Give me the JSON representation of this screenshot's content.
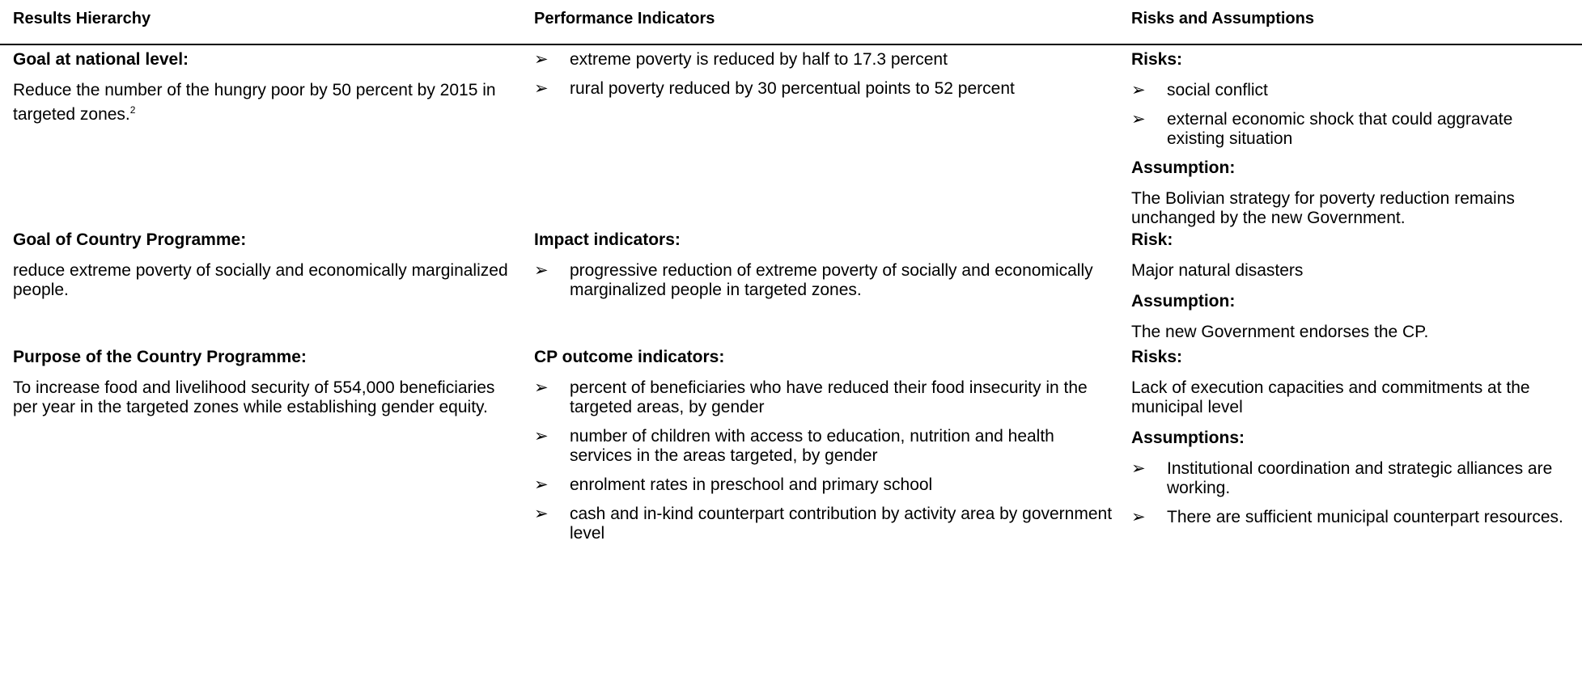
{
  "header": [
    "Results Hierarchy",
    "Performance Indicators",
    "Risks and Assumptions"
  ],
  "rows": [
    {
      "results": {
        "heading": "Goal at national level:",
        "text": "Reduce the number of the hungry poor by 50 percent by 2015 in targeted zones.",
        "footnote": "2"
      },
      "indicators": {
        "items": [
          "extreme poverty is reduced by half to 17.3 percent",
          "rural poverty reduced by 30 percentual points to 52 percent"
        ]
      },
      "risks": [
        {
          "heading": "Risks:",
          "items": [
            "social conflict",
            "external economic shock that could aggravate existing situation"
          ]
        },
        {
          "heading": "Assumption:",
          "text": "The Bolivian strategy for poverty reduction remains unchanged by the new Government."
        }
      ]
    },
    {
      "results": {
        "heading": "Goal of Country Programme:",
        "text": "reduce extreme poverty of socially and economically marginalized people."
      },
      "indicators": {
        "heading": "Impact indicators:",
        "items": [
          "progressive reduction of extreme poverty of socially and economically marginalized people in targeted zones."
        ]
      },
      "risks": [
        {
          "heading": "Risk:",
          "text": "Major natural disasters"
        },
        {
          "heading": "Assumption:",
          "text": "The new Government endorses the CP."
        }
      ]
    },
    {
      "results": {
        "heading": "Purpose of the Country Programme:",
        "text": "To increase food and livelihood security of 554,000 beneficiaries per year in the targeted zones while establishing gender equity."
      },
      "indicators": {
        "heading": "CP outcome indicators:",
        "items": [
          "percent of beneficiaries who have reduced their food insecurity in the targeted areas, by gender",
          "number of children with access to education, nutrition and health services in the areas targeted, by gender",
          "enrolment rates in preschool and primary school",
          "cash and in-kind counterpart contribution by activity area by government level"
        ]
      },
      "risks": [
        {
          "heading": "Risks:",
          "text": "Lack of execution capacities and commitments at the municipal level"
        },
        {
          "heading": "Assumptions:",
          "items": [
            "Institutional coordination and strategic alliances are working.",
            "There are sufficient municipal counterpart resources."
          ]
        }
      ]
    }
  ]
}
